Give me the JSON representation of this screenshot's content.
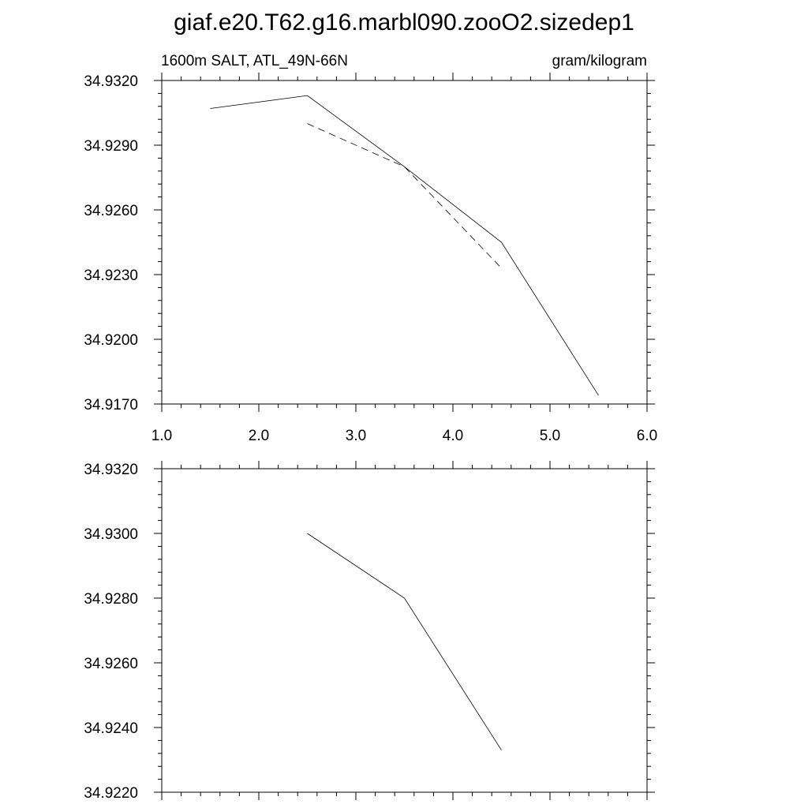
{
  "figure": {
    "title": "giaf.e20.T62.g16.marbl090.zooO2.sizedep1"
  },
  "chart_data": [
    {
      "type": "line",
      "subtitle_left": "1600m SALT, ATL_49N-66N",
      "subtitle_right": "gram/kilogram",
      "xlim": [
        1.0,
        6.0
      ],
      "ylim": [
        34.917,
        34.932
      ],
      "x_ticks": [
        1.0,
        2.0,
        3.0,
        4.0,
        5.0,
        6.0
      ],
      "x_tick_labels": [
        "1.0",
        "2.0",
        "3.0",
        "4.0",
        "5.0",
        "6.0"
      ],
      "y_ticks": [
        34.917,
        34.92,
        34.923,
        34.926,
        34.929,
        34.932
      ],
      "y_tick_labels": [
        "34.9170",
        "34.9200",
        "34.9230",
        "34.9260",
        "34.9290",
        "34.9320"
      ],
      "grid": false,
      "series": [
        {
          "line_style": "solid",
          "color": "#000000",
          "x": [
            1.5,
            2.5,
            3.5,
            4.5,
            5.5
          ],
          "y": [
            34.9307,
            34.9313,
            34.928,
            34.9245,
            34.9174
          ]
        },
        {
          "line_style": "dashed",
          "color": "#000000",
          "x": [
            2.5,
            3.5,
            4.5
          ],
          "y": [
            34.93,
            34.928,
            34.9233
          ]
        }
      ]
    },
    {
      "type": "line",
      "xlim": [
        1.0,
        6.0
      ],
      "ylim": [
        34.922,
        34.932
      ],
      "x_ticks": [
        1.0,
        2.0,
        3.0,
        4.0,
        5.0,
        6.0
      ],
      "y_ticks": [
        34.922,
        34.924,
        34.926,
        34.928,
        34.93,
        34.932
      ],
      "y_tick_labels": [
        "34.9220",
        "34.9240",
        "34.9260",
        "34.9280",
        "34.9300",
        "34.9320"
      ],
      "grid": false,
      "series": [
        {
          "line_style": "solid",
          "color": "#000000",
          "x": [
            2.5,
            3.5,
            4.5
          ],
          "y": [
            34.93,
            34.928,
            34.9233
          ]
        }
      ]
    }
  ]
}
